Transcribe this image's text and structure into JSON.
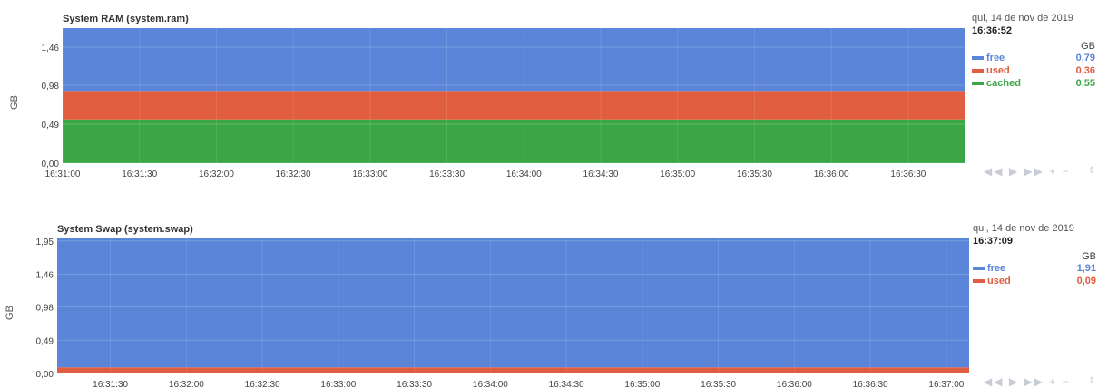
{
  "charts": [
    {
      "legend": {
        "date": "qui, 14 de nov de 2019",
        "time": "16:36:52",
        "unit": "GB",
        "items": [
          {
            "name": "free",
            "value": "0,79",
            "color": "#5a85d8"
          },
          {
            "name": "used",
            "value": "0,36",
            "color": "#e05d3f"
          },
          {
            "name": "cached",
            "value": "0,55",
            "color": "#3aa646"
          }
        ]
      }
    },
    {
      "legend": {
        "date": "qui, 14 de nov de 2019",
        "time": "16:37:09",
        "unit": "GB",
        "items": [
          {
            "name": "free",
            "value": "1,91",
            "color": "#5a85d8"
          },
          {
            "name": "used",
            "value": "0,09",
            "color": "#e05d3f"
          }
        ]
      }
    }
  ],
  "controls": {
    "rewind": "◀◀",
    "play": "▶",
    "forward": "▶▶",
    "zoom_in": "+",
    "zoom_out": "−",
    "resize": "⇕"
  },
  "chart_data": [
    {
      "type": "area",
      "stacked": true,
      "title": "System RAM (system.ram)",
      "ylabel": "GB",
      "ylim": [
        0,
        1.7
      ],
      "yticks": [
        "0,00",
        "0,49",
        "0,98",
        "1,46"
      ],
      "ytick_values": [
        0,
        0.49,
        0.98,
        1.46
      ],
      "xlim": [
        "16:31:00",
        "16:36:52"
      ],
      "xticks": [
        "16:31:00",
        "16:31:30",
        "16:32:00",
        "16:32:30",
        "16:33:00",
        "16:33:30",
        "16:34:00",
        "16:34:30",
        "16:35:00",
        "16:35:30",
        "16:36:00",
        "16:36:30"
      ],
      "grid": true,
      "series": [
        {
          "name": "cached",
          "values": [
            0.55,
            0.55
          ],
          "color": "#3aa646"
        },
        {
          "name": "used",
          "values": [
            0.36,
            0.36
          ],
          "color": "#e05d3f"
        },
        {
          "name": "free",
          "values": [
            0.79,
            0.79
          ],
          "color": "#5a85d8"
        }
      ]
    },
    {
      "type": "area",
      "stacked": true,
      "title": "System Swap (system.swap)",
      "ylabel": "GB",
      "ylim": [
        0,
        2.0
      ],
      "yticks": [
        "0,00",
        "0,49",
        "0,98",
        "1,46",
        "1,95"
      ],
      "ytick_values": [
        0,
        0.49,
        0.98,
        1.46,
        1.95
      ],
      "xlim": [
        "16:31:09",
        "16:37:09"
      ],
      "xticks": [
        "16:31:30",
        "16:32:00",
        "16:32:30",
        "16:33:00",
        "16:33:30",
        "16:34:00",
        "16:34:30",
        "16:35:00",
        "16:35:30",
        "16:36:00",
        "16:36:30",
        "16:37:00"
      ],
      "grid": true,
      "series": [
        {
          "name": "used",
          "values": [
            0.09,
            0.09
          ],
          "color": "#e05d3f"
        },
        {
          "name": "free",
          "values": [
            1.91,
            1.91
          ],
          "color": "#5a85d8"
        }
      ]
    }
  ]
}
